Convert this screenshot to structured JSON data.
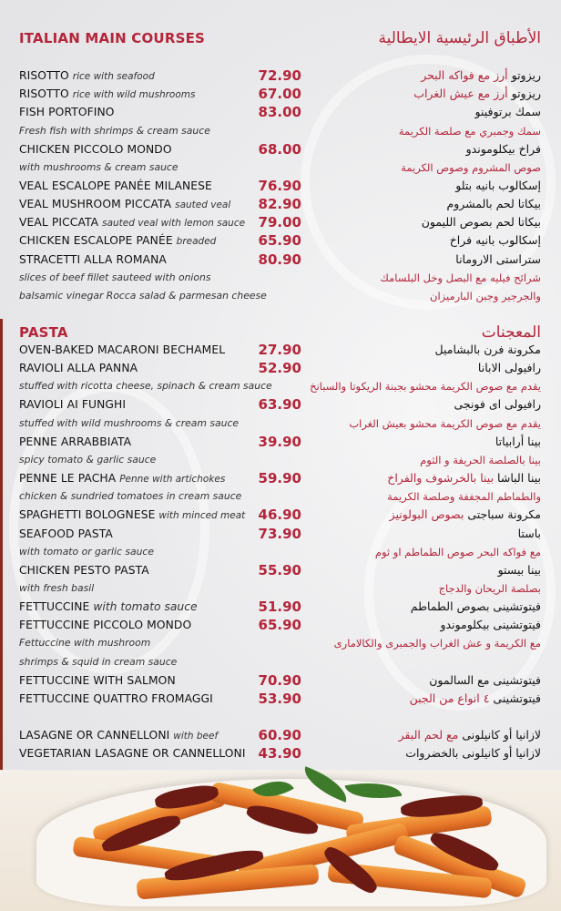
{
  "sections": [
    {
      "title_en": "ITALIAN MAIN COURSES",
      "title_ar": "الأطباق الرئيسية الايطالية",
      "rows": [
        {
          "name": "RISOTTO",
          "note": "rice with seafood",
          "price": "72.90",
          "ar_name": "ريزوتو",
          "ar_note": "أرز مع فواكه البحر"
        },
        {
          "name": "RISOTTO",
          "note": "rice with wild mushrooms",
          "price": "67.00",
          "ar_name": "ريزوتو",
          "ar_note": "أرز مع عيش الغراب"
        },
        {
          "name": "FISH PORTOFINO",
          "price": "83.00",
          "ar_name": "سمك برتوفينو"
        },
        {
          "desc": "Fresh fish with shrimps & cream sauce",
          "ar_desc": "سمك وجمبري مع صلصة الكريمة"
        },
        {
          "name": "CHICKEN PICCOLO MONDO",
          "price": "68.00",
          "ar_name": "فراخ بيكلوموندو"
        },
        {
          "desc": "with mushrooms & cream sauce",
          "ar_desc": "صوص المشروم وصوص الكريمة"
        },
        {
          "name": "VEAL ESCALOPE PANÉE MILANESE",
          "price": "76.90",
          "ar_name": "إسكالوب بانيه بتلو"
        },
        {
          "name": "VEAL MUSHROOM PICCATA",
          "note": "sauted veal",
          "price": "82.90",
          "ar_name": "بيكاتا لحم بالمشروم"
        },
        {
          "name": "VEAL PICCATA",
          "note": "sauted veal with lemon sauce",
          "price": "79.00",
          "ar_name": "بيكاتا لحم بصوص الليمون"
        },
        {
          "name": "CHICKEN ESCALOPE PANÉE",
          "note": "breaded",
          "price": "65.90",
          "ar_name": "إسكالوب بانيه فراخ"
        },
        {
          "name": "STRACETTI ALLA ROMANA",
          "price": "80.90",
          "ar_name": "ستراستى الارومانا"
        },
        {
          "desc": "slices of beef fillet sauteed with onions",
          "ar_desc": "شرائح فيليه مع البصل وخل البلسامك"
        },
        {
          "desc": "balsamic vinegar Rocca salad & parmesan cheese",
          "ar_desc": "والجرجير وجبن البارميزان"
        }
      ]
    },
    {
      "title_en": "PASTA",
      "title_ar": "المعجنات",
      "rows": [
        {
          "name": "OVEN-BAKED MACARONI BECHAMEL",
          "price": "27.90",
          "ar_name": "مكرونة فرن بالبشاميل"
        },
        {
          "name": "RAVIOLI ALLA PANNA",
          "price": "52.90",
          "ar_name": "رافيولى الابانا"
        },
        {
          "desc": "stuffed with ricotta cheese, spinach & cream sauce",
          "ar_desc": "يقدم مع صوص الكريمة محشو بجبنة الريكوتا والسبانخ"
        },
        {
          "name": "RAVIOLI AI FUNGHI",
          "price": "63.90",
          "ar_name": "رافيولى اى فونجى"
        },
        {
          "desc": "stuffed with wild mushrooms & cream sauce",
          "ar_desc": "يقدم مع صوص الكريمة محشو بعيش الغراب"
        },
        {
          "name": "PENNE ARRABBIATA",
          "price": "39.90",
          "ar_name": "بينا أرابياتا"
        },
        {
          "desc": "spicy tomato & garlic sauce",
          "ar_desc": "بينا بالصلصة الحريفة و الثوم"
        },
        {
          "name": "PENNE LE PACHA",
          "note": "Penne with artichokes",
          "price": "59.90",
          "ar_name": "بينا الباشا",
          "ar_note": "بينا بالخرشوف والفراخ"
        },
        {
          "desc": "chicken & sundried tomatoes in cream sauce",
          "ar_desc": "والطماطم المجففة وصلصة الكريمة"
        },
        {
          "name": "SPAGHETTI BOLOGNESE",
          "note": "with minced meat",
          "price": "46.90",
          "ar_name": "مكرونة سباجتى",
          "ar_note": "بصوص البولونيز"
        },
        {
          "name": "SEAFOOD PASTA",
          "price": "73.90",
          "ar_name": "باستا"
        },
        {
          "desc": "with tomato or garlic sauce",
          "ar_desc": "مع فواكه البحر  صوص الطماطم او ثوم"
        },
        {
          "name": "CHICKEN PESTO PASTA",
          "price": "55.90",
          "ar_name": "بينا بيستو"
        },
        {
          "desc": "with fresh basil",
          "ar_desc": "بصلصة الريحان والدجاج"
        },
        {
          "name": "FETTUCCINE",
          "note": "with tomato sauce",
          "note_big": true,
          "price": "51.90",
          "ar_name": "فيتوتشينى بصوص الطماطم"
        },
        {
          "name": "FETTUCCINE PICCOLO MONDO",
          "price": "65.90",
          "ar_name": "فيتوتشينى بيكلوموندو"
        },
        {
          "desc": "Fettuccine with mushroom",
          "ar_desc": "مع الكريمة و عش الغراب والجمبرى والكالامارى"
        },
        {
          "desc": " shrimps & squid in cream sauce"
        },
        {
          "name": "FETTUCCINE WITH SALMON",
          "price": "70.90",
          "ar_name": "فيتوتشينى مع السالمون"
        },
        {
          "name": "FETTUCCINE QUATTRO FROMAGGI",
          "price": "53.90",
          "ar_name": "فيتوتشينى",
          "ar_note": "٤ انواع من الجبن"
        },
        {
          "gap": true
        },
        {
          "name": "LASAGNE OR CANNELLONI",
          "note": "with beef",
          "price": "60.90",
          "ar_name": "لازانيا  أو كانيلونى",
          "ar_note": "مع لحم البقر"
        },
        {
          "name": "VEGETARIAN LASAGNE OR CANNELLONI",
          "price": "43.90",
          "ar_name": "لازانيا أو كانيلونى بالخضروات"
        }
      ]
    }
  ],
  "colors": {
    "accent": "#b5253a",
    "text": "#111111",
    "background": "#ececee"
  },
  "photo": {
    "subject": "penne pasta with sun-dried tomatoes and basil"
  }
}
